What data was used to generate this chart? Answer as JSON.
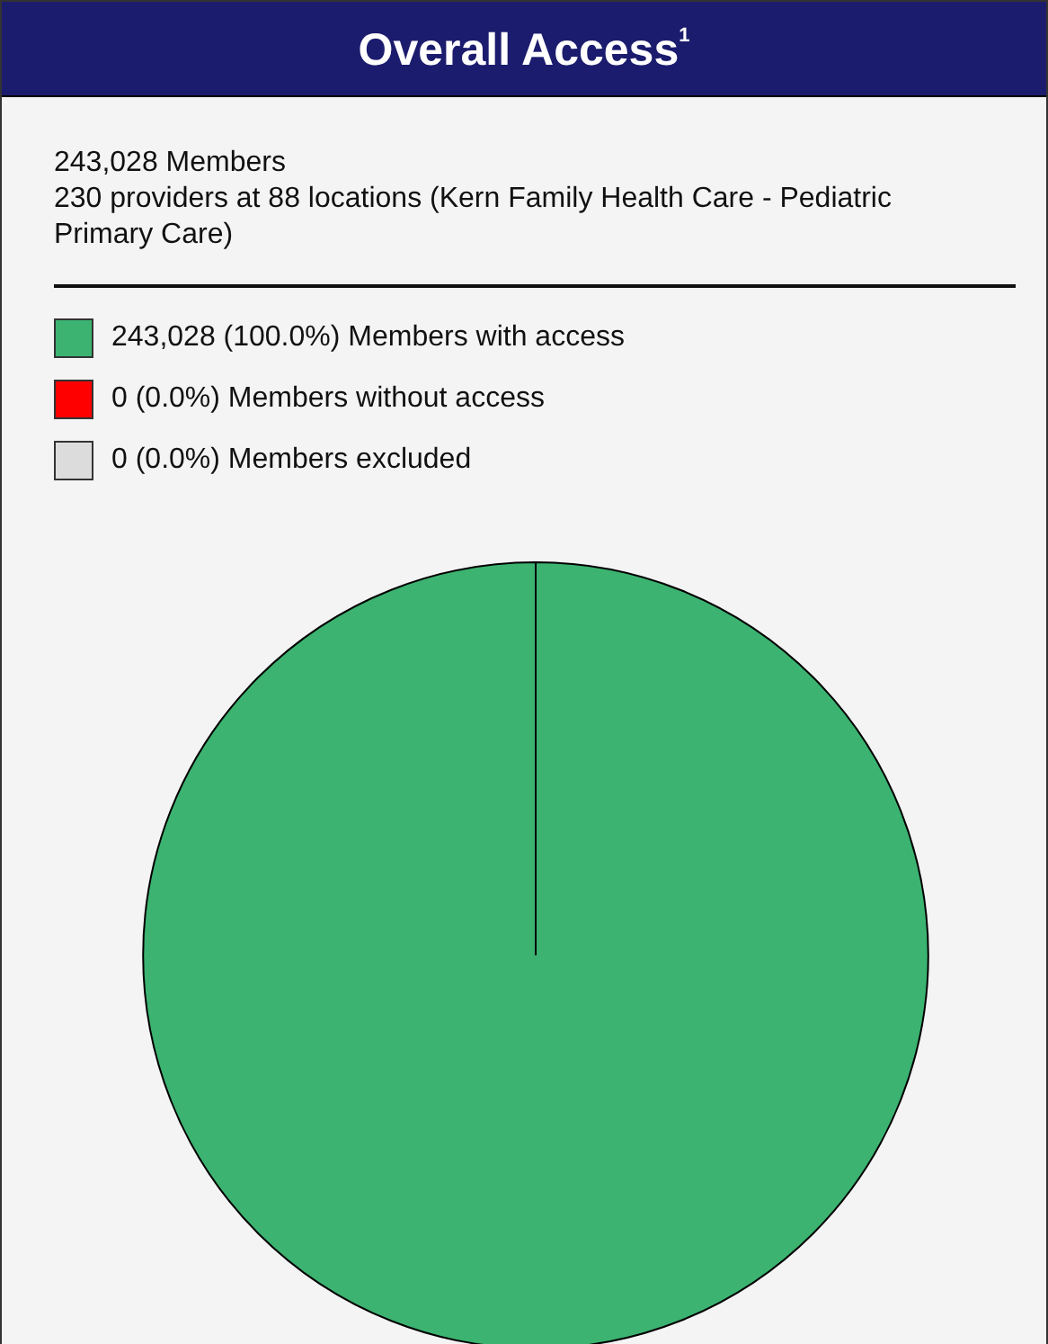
{
  "chart_data": {
    "type": "pie",
    "title": "Overall Access$^{1}$",
    "subtitle": "243,028 Members",
    "annotations": [
      "230 providers at 88 locations (Kern Family Health Care - Pediatric Primary Care)"
    ],
    "categories": [
      "Members with access",
      "Members without access",
      "Members excluded"
    ],
    "values": [
      243028,
      0,
      0
    ],
    "value_labels": [
      "243,028 (100.0%)",
      "0 (0.0%)",
      "0 (0.0%)"
    ],
    "colors": [
      "#3cb371",
      "#ff0000",
      "#dcdcdc"
    ],
    "legend": "top left"
  }
}
